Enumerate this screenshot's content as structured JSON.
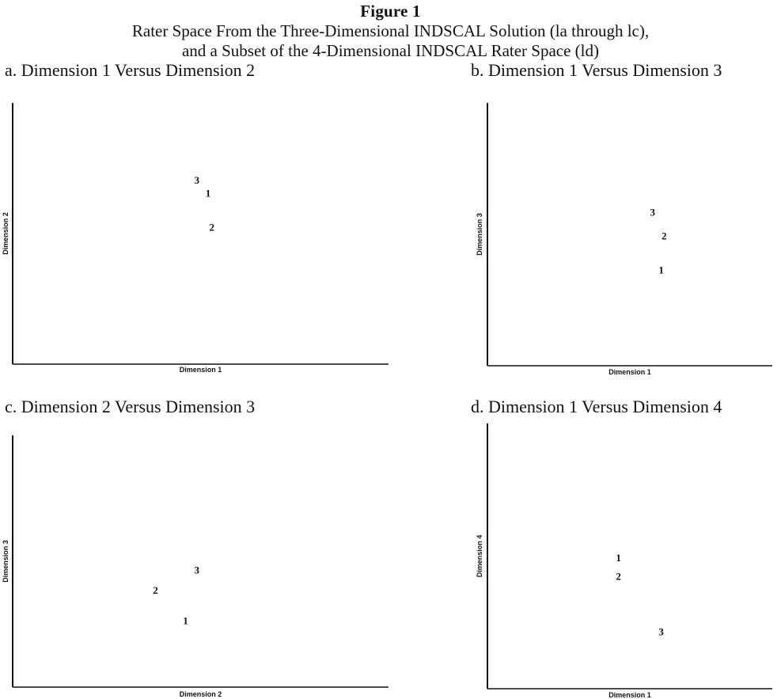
{
  "figure": {
    "title": "Figure 1",
    "subtitle_line1": "Rater Space From the Three-Dimensional INDSCAL Solution (la through lc),",
    "subtitle_line2": "and a Subset of the 4-Dimensional INDSCAL Rater Space (ld)"
  },
  "chart_data": [
    {
      "type": "scatter",
      "title": "a. Dimension 1 Versus Dimension 2",
      "xlabel": "Dimension 1",
      "ylabel": "Dimension 2",
      "xlim": [
        0,
        1
      ],
      "ylim": [
        0,
        1
      ],
      "grid": false,
      "points": [
        {
          "label": "3",
          "x": 0.49,
          "y": 0.7
        },
        {
          "label": "1",
          "x": 0.52,
          "y": 0.65
        },
        {
          "label": "2",
          "x": 0.53,
          "y": 0.52
        }
      ]
    },
    {
      "type": "scatter",
      "title": "b. Dimension 1 Versus Dimension 3",
      "xlabel": "Dimension 1",
      "ylabel": "Dimension 3",
      "xlim": [
        0,
        1
      ],
      "ylim": [
        0,
        1
      ],
      "grid": false,
      "points": [
        {
          "label": "3",
          "x": 0.58,
          "y": 0.58
        },
        {
          "label": "2",
          "x": 0.62,
          "y": 0.49
        },
        {
          "label": "1",
          "x": 0.61,
          "y": 0.36
        }
      ]
    },
    {
      "type": "scatter",
      "title": "c. Dimension 2 Versus Dimension 3",
      "xlabel": "Dimension 2",
      "ylabel": "Dimension 3",
      "xlim": [
        0,
        1
      ],
      "ylim": [
        0,
        1
      ],
      "grid": false,
      "points": [
        {
          "label": "3",
          "x": 0.49,
          "y": 0.46
        },
        {
          "label": "2",
          "x": 0.38,
          "y": 0.38
        },
        {
          "label": "1",
          "x": 0.46,
          "y": 0.26
        }
      ]
    },
    {
      "type": "scatter",
      "title": "d. Dimension 1 Versus Dimension 4",
      "xlabel": "Dimension 1",
      "ylabel": "Dimension 4",
      "xlim": [
        0,
        1
      ],
      "ylim": [
        0,
        1
      ],
      "grid": false,
      "points": [
        {
          "label": "1",
          "x": 0.46,
          "y": 0.49
        },
        {
          "label": "2",
          "x": 0.46,
          "y": 0.42
        },
        {
          "label": "3",
          "x": 0.61,
          "y": 0.21
        }
      ]
    }
  ]
}
